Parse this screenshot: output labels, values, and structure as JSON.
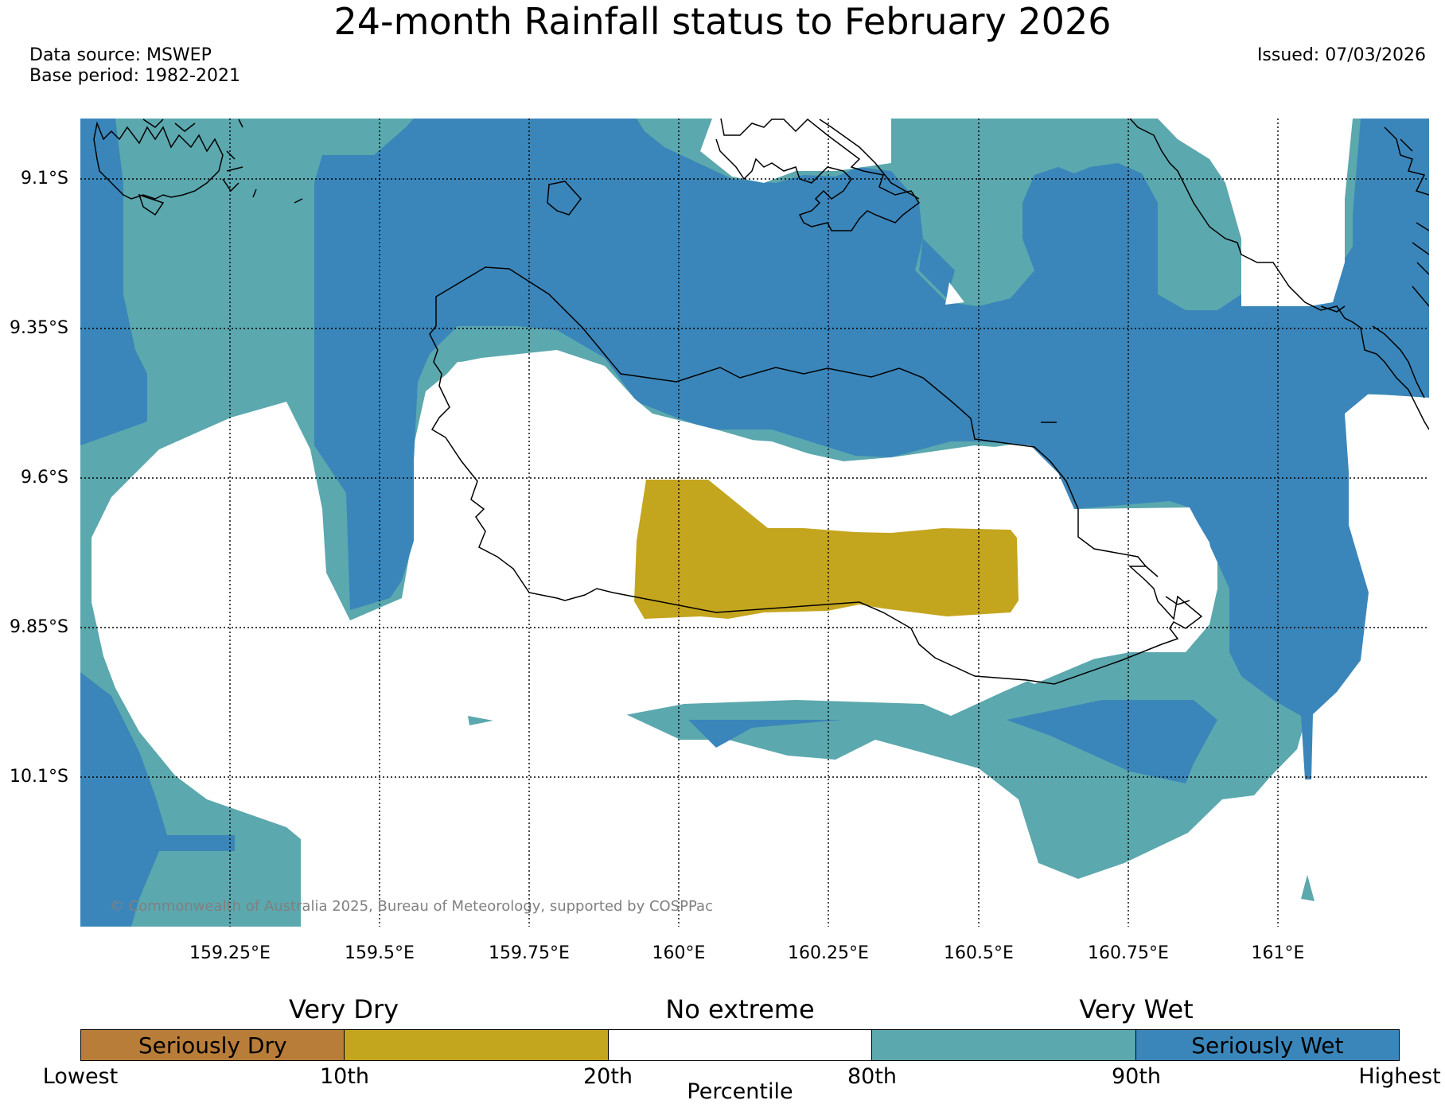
{
  "title": "24-month Rainfall status to February 2026",
  "data_source": "Data source: MSWEP",
  "base_period": "Base period: 1982-2021",
  "issued": "Issued: 07/03/2026",
  "copyright": "© Commonwealth of Australia 2025, Bureau of Meteorology, supported by COSPPac",
  "map": {
    "lon_range": [
      159.0,
      161.25
    ],
    "lat_range": [
      -9.0,
      -10.35
    ],
    "lon_ticks": [
      {
        "value": 159.25,
        "label": "159.25°E"
      },
      {
        "value": 159.5,
        "label": "159.5°E"
      },
      {
        "value": 159.75,
        "label": "159.75°E"
      },
      {
        "value": 160.0,
        "label": "160°E"
      },
      {
        "value": 160.25,
        "label": "160.25°E"
      },
      {
        "value": 160.5,
        "label": "160.5°E"
      },
      {
        "value": 160.75,
        "label": "160.75°E"
      },
      {
        "value": 161.0,
        "label": "161°E"
      }
    ],
    "lat_ticks": [
      {
        "value": -9.1,
        "label": "9.1°S"
      },
      {
        "value": -9.35,
        "label": "9.35°S"
      },
      {
        "value": -9.6,
        "label": "9.6°S"
      },
      {
        "value": -9.85,
        "label": "9.85°S"
      },
      {
        "value": -10.1,
        "label": "10.1°S"
      }
    ],
    "grid": true,
    "colors": {
      "seriously_dry": "#b87d39",
      "very_dry": "#c4a51e",
      "no_extreme": "#ffffff",
      "very_wet": "#5ba8ae",
      "seriously_wet": "#3a86ba",
      "coastline": "#000000"
    }
  },
  "legend": {
    "categories": [
      {
        "label": "Very Dry"
      },
      {
        "label": "No extreme"
      },
      {
        "label": "Very Wet"
      }
    ],
    "segments": [
      {
        "label": "Seriously Dry",
        "color": "#b87d39"
      },
      {
        "label": "",
        "color": "#c4a51e"
      },
      {
        "label": "",
        "color": "#ffffff"
      },
      {
        "label": "",
        "color": "#5ba8ae"
      },
      {
        "label": "Seriously Wet",
        "color": "#3a86ba"
      }
    ],
    "boundaries": [
      "Lowest",
      "10th",
      "20th",
      "80th",
      "90th",
      "Highest"
    ],
    "axis_label": "Percentile"
  }
}
